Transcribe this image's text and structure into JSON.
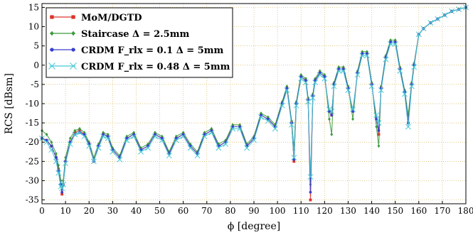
{
  "chart_data": {
    "type": "line",
    "xlabel": "ϕ [degree]",
    "ylabel": "RCS [dBsm]",
    "xlim": [
      0,
      180
    ],
    "ylim": [
      -36,
      16
    ],
    "xticks": [
      0,
      10,
      20,
      30,
      40,
      50,
      60,
      70,
      80,
      90,
      100,
      110,
      120,
      130,
      140,
      150,
      160,
      170,
      180
    ],
    "yticks": [
      15,
      10,
      5,
      0,
      -5,
      -10,
      -15,
      -20,
      -25,
      -30,
      -35
    ],
    "grid": true,
    "legend_position": "top-left",
    "series": [
      {
        "name": "MoM/DGTD",
        "color": "#d9342b",
        "marker": "square",
        "x": [
          0,
          2,
          4,
          6,
          7,
          8,
          8.5,
          9,
          10,
          12,
          14,
          16,
          18,
          20,
          22,
          24,
          26,
          28,
          30,
          33,
          36,
          39,
          42,
          45,
          48,
          51,
          54,
          57,
          60,
          63,
          66,
          69,
          72,
          75,
          78,
          81,
          84,
          87,
          90,
          93,
          96,
          99,
          102,
          104,
          106,
          107,
          108,
          110,
          112,
          113,
          114,
          115,
          116,
          118,
          120,
          122,
          123,
          124,
          126,
          128,
          130,
          132,
          134,
          136,
          138,
          140,
          142,
          143,
          144,
          146,
          148,
          150,
          152,
          154,
          155.5,
          157,
          158,
          160,
          162,
          165,
          168,
          171,
          174,
          177,
          180
        ],
        "y": [
          -19,
          -19.5,
          -21,
          -24,
          -27,
          -31,
          -33.5,
          -31,
          -25,
          -20,
          -17.5,
          -17,
          -18,
          -20.5,
          -25,
          -21,
          -18,
          -18.5,
          -22,
          -24,
          -19,
          -18,
          -22,
          -21,
          -18,
          -19,
          -23,
          -19,
          -18,
          -21,
          -23,
          -18,
          -17,
          -21,
          -20,
          -16,
          -16,
          -21,
          -19,
          -13,
          -14,
          -16,
          -10,
          -6,
          -15,
          -25,
          -10,
          -3,
          -4,
          -9,
          -35,
          -8,
          -4,
          -2,
          -3,
          -12,
          -13,
          -5,
          -1,
          -1,
          -6,
          -12,
          -2,
          3,
          3,
          -5,
          -14,
          -18,
          -6,
          2,
          6,
          6,
          -1,
          -7,
          -15,
          -5,
          0,
          8,
          9.5,
          11,
          12,
          13,
          14,
          14.5,
          15
        ]
      },
      {
        "name": "Staircase Δ = 2.5mm",
        "color": "#3c9a3c",
        "marker": "diamond",
        "x": [
          0,
          2,
          4,
          6,
          7,
          8,
          8.5,
          9,
          10,
          12,
          14,
          16,
          18,
          20,
          22,
          24,
          26,
          28,
          30,
          33,
          36,
          39,
          42,
          45,
          48,
          51,
          54,
          57,
          60,
          63,
          66,
          69,
          72,
          75,
          78,
          81,
          84,
          87,
          90,
          93,
          96,
          99,
          102,
          104,
          106,
          107,
          108,
          110,
          112,
          113,
          114,
          115,
          116,
          118,
          120,
          122,
          123,
          124,
          126,
          128,
          130,
          132,
          134,
          136,
          138,
          140,
          142,
          143,
          144,
          146,
          148,
          150,
          152,
          154,
          155.5,
          157,
          158,
          160,
          162,
          165,
          168,
          171,
          174,
          177,
          180
        ],
        "y": [
          -17,
          -18,
          -20,
          -23,
          -26,
          -30,
          -32,
          -30,
          -24,
          -19,
          -17,
          -16.5,
          -17.5,
          -20,
          -24,
          -20.5,
          -17.5,
          -18,
          -21.5,
          -23.5,
          -18.5,
          -17.5,
          -21.5,
          -20.5,
          -17.5,
          -18.5,
          -22.5,
          -18.5,
          -17.5,
          -20.5,
          -22.5,
          -17.5,
          -16.5,
          -20.5,
          -19.5,
          -15.5,
          -15.5,
          -20.5,
          -18.5,
          -12.5,
          -13.5,
          -15.5,
          -9.5,
          -5.5,
          -14.5,
          -22,
          -9.5,
          -2.5,
          -3.5,
          -8.5,
          -31,
          -7.5,
          -3.5,
          -1.5,
          -2.5,
          -14,
          -18,
          -4.5,
          -0.5,
          -0.5,
          -5.5,
          -14,
          -1.5,
          3.5,
          3.5,
          -4.5,
          -16,
          -21,
          -5.5,
          2.5,
          6.5,
          6.5,
          -0.5,
          -6.5,
          -13,
          -4.5,
          0.5,
          8,
          9.5,
          11,
          12,
          13,
          14,
          14.5,
          15
        ]
      },
      {
        "name": "CRDM F_rlx = 0.1 Δ = 5mm",
        "color": "#3a3fd0",
        "marker": "circle",
        "x": [
          0,
          2,
          4,
          6,
          7,
          8,
          8.5,
          9,
          10,
          12,
          14,
          16,
          18,
          20,
          22,
          24,
          26,
          28,
          30,
          33,
          36,
          39,
          42,
          45,
          48,
          51,
          54,
          57,
          60,
          63,
          66,
          69,
          72,
          75,
          78,
          81,
          84,
          87,
          90,
          93,
          96,
          99,
          102,
          104,
          106,
          107,
          108,
          110,
          112,
          113,
          114,
          115,
          116,
          118,
          120,
          122,
          123,
          124,
          126,
          128,
          130,
          132,
          134,
          136,
          138,
          140,
          142,
          143,
          144,
          146,
          148,
          150,
          152,
          154,
          155.5,
          157,
          158,
          160,
          162,
          165,
          168,
          171,
          174,
          177,
          180
        ],
        "y": [
          -19,
          -19.5,
          -21,
          -24,
          -27.5,
          -31,
          -33,
          -31,
          -25,
          -20,
          -18,
          -17.5,
          -18,
          -20.5,
          -25,
          -21,
          -18,
          -18.5,
          -22,
          -24,
          -19,
          -18,
          -22,
          -21,
          -18,
          -19,
          -23,
          -19,
          -18,
          -21,
          -23,
          -18,
          -17,
          -21,
          -20,
          -16,
          -16,
          -21,
          -19,
          -13,
          -14,
          -16,
          -10,
          -6,
          -15,
          -24.5,
          -10,
          -3,
          -4,
          -9,
          -33,
          -8,
          -4,
          -2,
          -3,
          -12,
          -13,
          -5,
          -1,
          -1,
          -6,
          -12,
          -2,
          3,
          3,
          -5,
          -14,
          -17,
          -6,
          2,
          6,
          6,
          -1,
          -7,
          -15,
          -5,
          0,
          8,
          9.5,
          11,
          12,
          13,
          14,
          14.5,
          15
        ]
      },
      {
        "name": "CRDM F_rlx = 0.48 Δ = 5mm",
        "color": "#48c7d6",
        "marker": "x",
        "x": [
          0,
          2,
          4,
          6,
          7,
          8,
          8.5,
          9,
          10,
          12,
          14,
          16,
          18,
          20,
          22,
          24,
          26,
          28,
          30,
          33,
          36,
          39,
          42,
          45,
          48,
          51,
          54,
          57,
          60,
          63,
          66,
          69,
          72,
          75,
          78,
          81,
          84,
          87,
          90,
          93,
          96,
          99,
          102,
          104,
          106,
          107,
          108,
          110,
          112,
          113,
          114,
          115,
          116,
          118,
          120,
          122,
          123,
          124,
          126,
          128,
          130,
          132,
          134,
          136,
          138,
          140,
          142,
          143,
          144,
          146,
          148,
          150,
          152,
          154,
          155.5,
          157,
          158,
          160,
          162,
          165,
          168,
          171,
          174,
          177,
          180
        ],
        "y": [
          -19,
          -20,
          -22,
          -25,
          -28,
          -31.5,
          -32,
          -31,
          -25.5,
          -20.5,
          -18,
          -17.5,
          -18.5,
          -21,
          -25,
          -21.5,
          -18.5,
          -19,
          -22.5,
          -24.5,
          -19.5,
          -18.5,
          -22.5,
          -21.5,
          -18.5,
          -19.5,
          -23.5,
          -19.5,
          -18.5,
          -21.5,
          -23.5,
          -18.5,
          -17.5,
          -21.5,
          -20.5,
          -16.5,
          -16.5,
          -21.5,
          -19.5,
          -13.5,
          -14.5,
          -16.5,
          -10.5,
          -6.5,
          -15.5,
          -24,
          -10.5,
          -3.5,
          -4.5,
          -9.5,
          -29,
          -8.5,
          -4.5,
          -2.5,
          -3.5,
          -11.5,
          -12,
          -5.5,
          -1.5,
          -1.5,
          -6.5,
          -11.5,
          -2.5,
          2.5,
          2.5,
          -5.5,
          -13,
          -15,
          -6.5,
          1.5,
          5.5,
          5.5,
          -1.5,
          -7.5,
          -16,
          -5.5,
          -0.5,
          8,
          9.5,
          11,
          12,
          13,
          14,
          14.5,
          15
        ]
      }
    ],
    "legend": [
      {
        "label": "MoM/DGTD"
      },
      {
        "label": "Staircase Δ = 2.5mm"
      },
      {
        "label": "CRDM F_rlx = 0.1 Δ = 5mm"
      },
      {
        "label": "CRDM F_rlx = 0.48 Δ = 5mm"
      }
    ]
  }
}
